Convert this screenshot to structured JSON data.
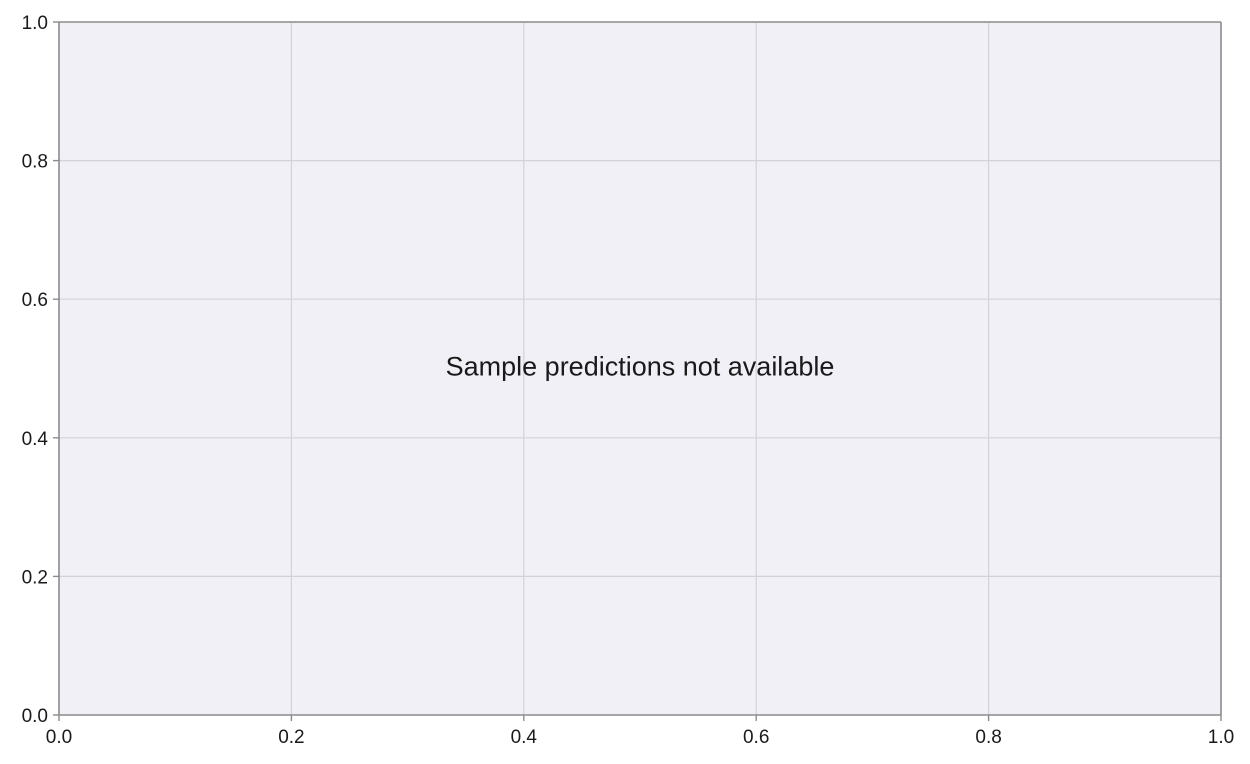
{
  "chart_data": {
    "type": "scatter",
    "title": "",
    "xlabel": "",
    "ylabel": "",
    "xlim": [
      0.0,
      1.0
    ],
    "ylim": [
      0.0,
      1.0
    ],
    "x_ticks": [
      "0.0",
      "0.2",
      "0.4",
      "0.6",
      "0.8",
      "1.0"
    ],
    "y_ticks": [
      "0.0",
      "0.2",
      "0.4",
      "0.6",
      "0.8",
      "1.0"
    ],
    "grid": true,
    "series": [],
    "annotation": "Sample predictions not available"
  },
  "colors": {
    "plot_background": "#f1f0f6",
    "grid": "#d3d2d9",
    "axis": "#8c8c8c",
    "text": "#1a1a1a"
  }
}
